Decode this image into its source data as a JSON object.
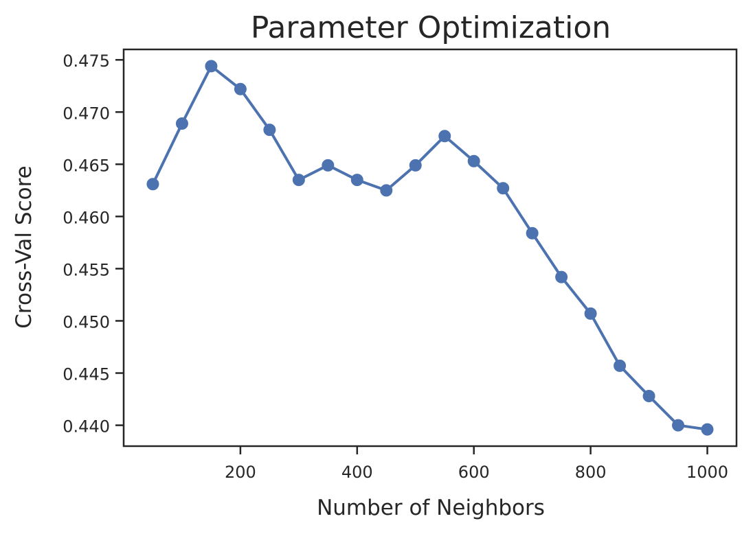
{
  "chart_data": {
    "type": "line",
    "title": "Parameter Optimization",
    "xlabel": "Number of Neighbors",
    "ylabel": "Cross-Val Score",
    "xlim": [
      0,
      1050
    ],
    "ylim": [
      0.438,
      0.476
    ],
    "xticks": [
      200,
      400,
      600,
      800,
      1000
    ],
    "xtick_labels": [
      "200",
      "400",
      "600",
      "800",
      "1000"
    ],
    "yticks": [
      0.44,
      0.445,
      0.45,
      0.455,
      0.46,
      0.465,
      0.47,
      0.475
    ],
    "ytick_labels": [
      "0.440",
      "0.445",
      "0.450",
      "0.455",
      "0.460",
      "0.465",
      "0.470",
      "0.475"
    ],
    "grid": false,
    "series": [
      {
        "color": "#4c72b0",
        "x": [
          50,
          100,
          150,
          200,
          250,
          300,
          350,
          400,
          450,
          500,
          550,
          600,
          650,
          700,
          750,
          800,
          850,
          900,
          950,
          1000
        ],
        "values": [
          0.4631,
          0.4689,
          0.4744,
          0.4722,
          0.4683,
          0.4635,
          0.4649,
          0.4635,
          0.4625,
          0.4649,
          0.4677,
          0.4653,
          0.4627,
          0.4584,
          0.4542,
          0.4507,
          0.4457,
          0.4428,
          0.44,
          0.4396
        ]
      }
    ]
  }
}
